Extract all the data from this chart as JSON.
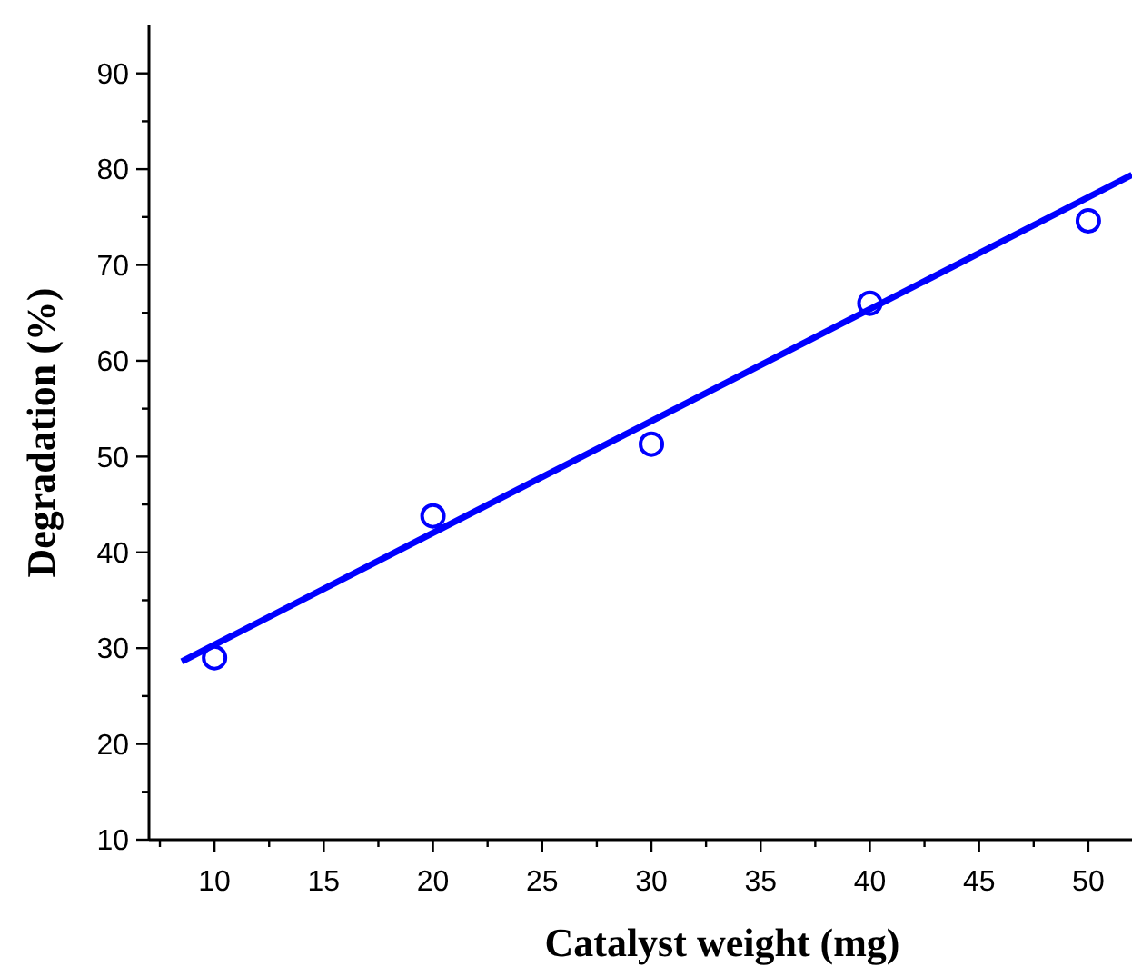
{
  "chart_data": {
    "type": "scatter",
    "xlabel": "Catalyst weight (mg)",
    "ylabel": "Degradation (%)",
    "xlim": [
      7,
      52
    ],
    "ylim": [
      10,
      95
    ],
    "xticks": [
      {
        "value": 7.5,
        "label": null
      },
      10,
      {
        "value": 12.5,
        "label": null
      },
      15,
      {
        "value": 17.5,
        "label": null
      },
      20,
      {
        "value": 22.5,
        "label": null
      },
      25,
      {
        "value": 27.5,
        "label": null
      },
      30,
      {
        "value": 32.5,
        "label": null
      },
      35,
      {
        "value": 37.5,
        "label": null
      },
      40,
      {
        "value": 42.5,
        "label": null
      },
      45,
      {
        "value": 47.5,
        "label": null
      },
      50
    ],
    "yticks": [
      10,
      {
        "value": 15,
        "label": null
      },
      20,
      {
        "value": 25,
        "label": null
      },
      30,
      {
        "value": 35,
        "label": null
      },
      40,
      {
        "value": 45,
        "label": null
      },
      50,
      {
        "value": 55,
        "label": null
      },
      60,
      {
        "value": 65,
        "label": null
      },
      70,
      {
        "value": 75,
        "label": null
      },
      80,
      {
        "value": 85,
        "label": null
      },
      90
    ],
    "grid": false,
    "series": [
      {
        "color": "#0000ff",
        "marker": "circle",
        "x": [
          10,
          20,
          30,
          40,
          50
        ],
        "values": [
          29,
          43.8,
          51.3,
          66,
          74.6
        ]
      },
      {
        "type": "line",
        "color": "#0000ff",
        "marker": "none",
        "line_style": "solid",
        "x": [
          8.5,
          52
        ],
        "values": [
          28.6,
          79.4
        ]
      }
    ]
  }
}
